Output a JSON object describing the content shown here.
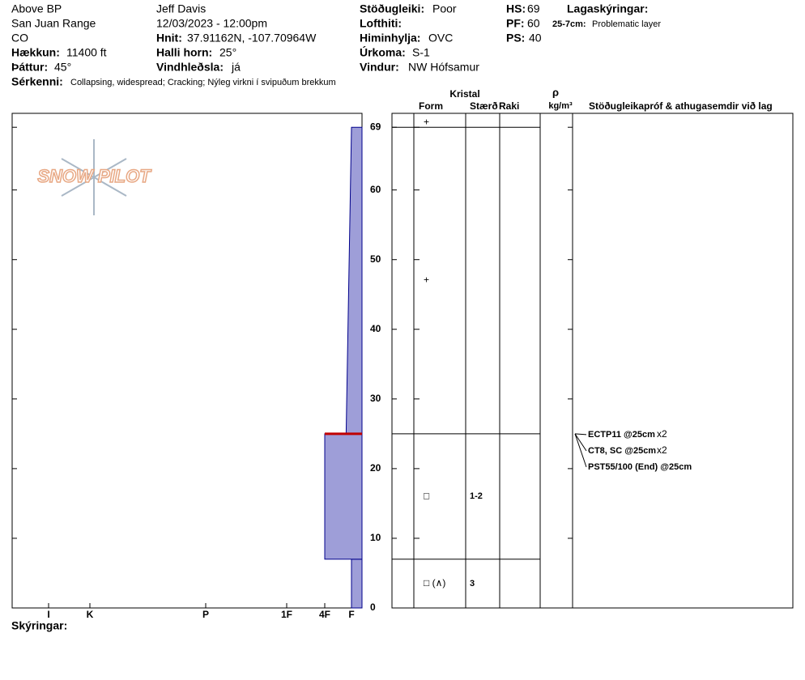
{
  "header": {
    "location": "Above BP",
    "range": "San Juan Range",
    "state": "CO",
    "elevation": {
      "label": "Hækkun:",
      "value": "11400 ft"
    },
    "aspect": {
      "label": "Þáttur:",
      "value": "45°"
    },
    "observer": "Jeff Davis",
    "datetime": "12/03/2023 - 12:00pm",
    "coords": {
      "label": "Hnit:",
      "value": "37.91162N, -107.70964W"
    },
    "slope": {
      "label": "Halli horn:",
      "value": "25°"
    },
    "wind_loading": {
      "label": "Vindhleðsla:",
      "value": "já"
    },
    "stability": {
      "label": "Stöðugleiki:",
      "value": "Poor"
    },
    "air_temp": {
      "label": "Lofthiti:"
    },
    "sky": {
      "label": "Himinhylja:",
      "value": "OVC"
    },
    "precip": {
      "label": "Úrkoma:",
      "value": "S-1"
    },
    "wind": {
      "label": "Vindur:",
      "value": "NW Hófsamur"
    },
    "hs": {
      "label": "HS:",
      "value": 69
    },
    "pf": {
      "label": "PF:",
      "value": 60
    },
    "ps": {
      "label": "PS:",
      "value": 40
    },
    "legend_title": "Lagaskýringar:",
    "legend_item": {
      "label": "25-7cm:",
      "text": "Problematic layer"
    },
    "features": {
      "label": "Sérkenni:",
      "value": "Collapsing, widespread;  Cracking;  Nýleg virkni í svipuðum brekkum"
    }
  },
  "logo": "SNOW PILOT",
  "columns": {
    "crystal": "Kristal",
    "form": "Form",
    "size": "Stærð",
    "moisture": "Raki",
    "density_symbol": "ρ",
    "density_unit": "kg/m³",
    "tests": "Stöðugleikapróf & athugasemdir við lag"
  },
  "footer": "Skýringar:",
  "chart_data": {
    "type": "snow-profile",
    "ylim": [
      0,
      71
    ],
    "yticks": [
      0,
      10,
      20,
      30,
      40,
      50,
      60,
      69
    ],
    "xticks": [
      {
        "value": 1,
        "label": "F"
      },
      {
        "value": 2,
        "label": "4F"
      },
      {
        "value": 3,
        "label": "1F"
      },
      {
        "value": 4,
        "label": "P"
      },
      {
        "value": 5,
        "label": "K"
      },
      {
        "value": 6,
        "label": "I"
      }
    ],
    "color": "#9e9ed8",
    "layers": [
      {
        "bottom": 0,
        "top": 7,
        "hardness_bottom": 1,
        "hardness_top": 1
      },
      {
        "bottom": 7,
        "top": 25,
        "hardness_bottom": 2,
        "hardness_top": 2
      },
      {
        "bottom": 25,
        "top": 69,
        "hardness_bottom": 1.2,
        "hardness_top": 1
      }
    ],
    "problematic_layer": 25,
    "crystals": [
      {
        "height": 69.7,
        "form": "+"
      },
      {
        "height": 47,
        "form": "+"
      },
      {
        "height": 16,
        "form": "□",
        "size": "1-2"
      },
      {
        "height": 3.5,
        "form": "□ (∧)",
        "size": "3"
      }
    ],
    "tests": [
      {
        "height": 25,
        "text": "ECTP11 @25cm",
        "count": "x2"
      },
      {
        "height": 25,
        "text": "CT8, SC @25cm",
        "count": "x2"
      },
      {
        "height": 25,
        "text": "PST55/100 (End) @25cm"
      }
    ]
  }
}
